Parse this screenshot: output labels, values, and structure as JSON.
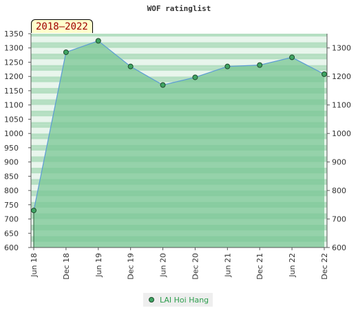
{
  "chart_data": {
    "type": "area",
    "title": "WOF ratinglist",
    "range_label": "2018–2022",
    "categories": [
      "Jun 18",
      "Dec 18",
      "Jun 19",
      "Dec 19",
      "Jun 20",
      "Dec 20",
      "Jun 21",
      "Dec 21",
      "Jun 22",
      "Dec 22"
    ],
    "series": [
      {
        "name": "LAI Hoi Hang",
        "values": [
          730,
          1285,
          1325,
          1235,
          1170,
          1197,
          1235,
          1240,
          1267,
          1208
        ]
      }
    ],
    "ylim": [
      600,
      1350
    ],
    "yticks_left": [
      600,
      650,
      700,
      750,
      800,
      850,
      900,
      950,
      1000,
      1050,
      1100,
      1150,
      1200,
      1250,
      1300,
      1350
    ],
    "yticks_right": [
      600,
      700,
      800,
      900,
      1000,
      1100,
      1200,
      1300
    ],
    "grid": "horizontal bands",
    "legend_position": "bottom",
    "colors": {
      "line": "#5b9bd5",
      "fill": "#79c594",
      "marker_fill": "#3fa463",
      "marker_stroke": "#1f4a2c",
      "band_light": "#e8f5ec",
      "band_dark": "#b5dfc2",
      "badge_text": "#a00000",
      "legend_text": "#2c9d4c"
    }
  }
}
